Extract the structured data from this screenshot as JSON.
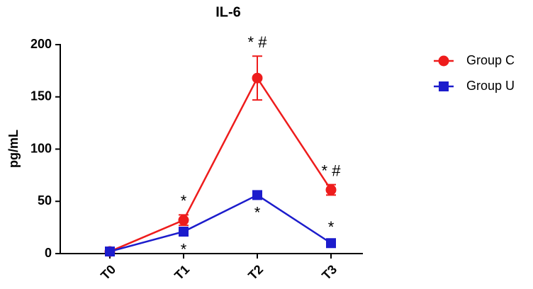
{
  "chart_data": {
    "type": "line",
    "title": "IL-6",
    "y_label": "pg/mL",
    "categories": [
      "T0",
      "T1",
      "T2",
      "T3"
    ],
    "series": [
      {
        "name": "Group C",
        "color": "#ee1c1c",
        "marker": "circle",
        "values": [
          2,
          32,
          168,
          61
        ],
        "errors": [
          1,
          5,
          21,
          5
        ]
      },
      {
        "name": "Group U",
        "color": "#1c1ccc",
        "marker": "square",
        "values": [
          2,
          21,
          56,
          10
        ],
        "errors": [
          1,
          3,
          3,
          2
        ]
      }
    ],
    "ylim": [
      0,
      200
    ],
    "yticks": [
      0,
      50,
      100,
      150,
      200
    ],
    "annotations": [
      {
        "text": "*",
        "x": "T1",
        "series": "Group C"
      },
      {
        "text": "*",
        "x": "T1",
        "series": "Group U"
      },
      {
        "text": "* #",
        "x": "T2",
        "series": "Group C"
      },
      {
        "text": "*",
        "x": "T2",
        "series": "Group U"
      },
      {
        "text": "* #",
        "x": "T3",
        "series": "Group C"
      },
      {
        "text": "*",
        "x": "T3",
        "series": "Group U"
      }
    ],
    "legend": "right"
  }
}
